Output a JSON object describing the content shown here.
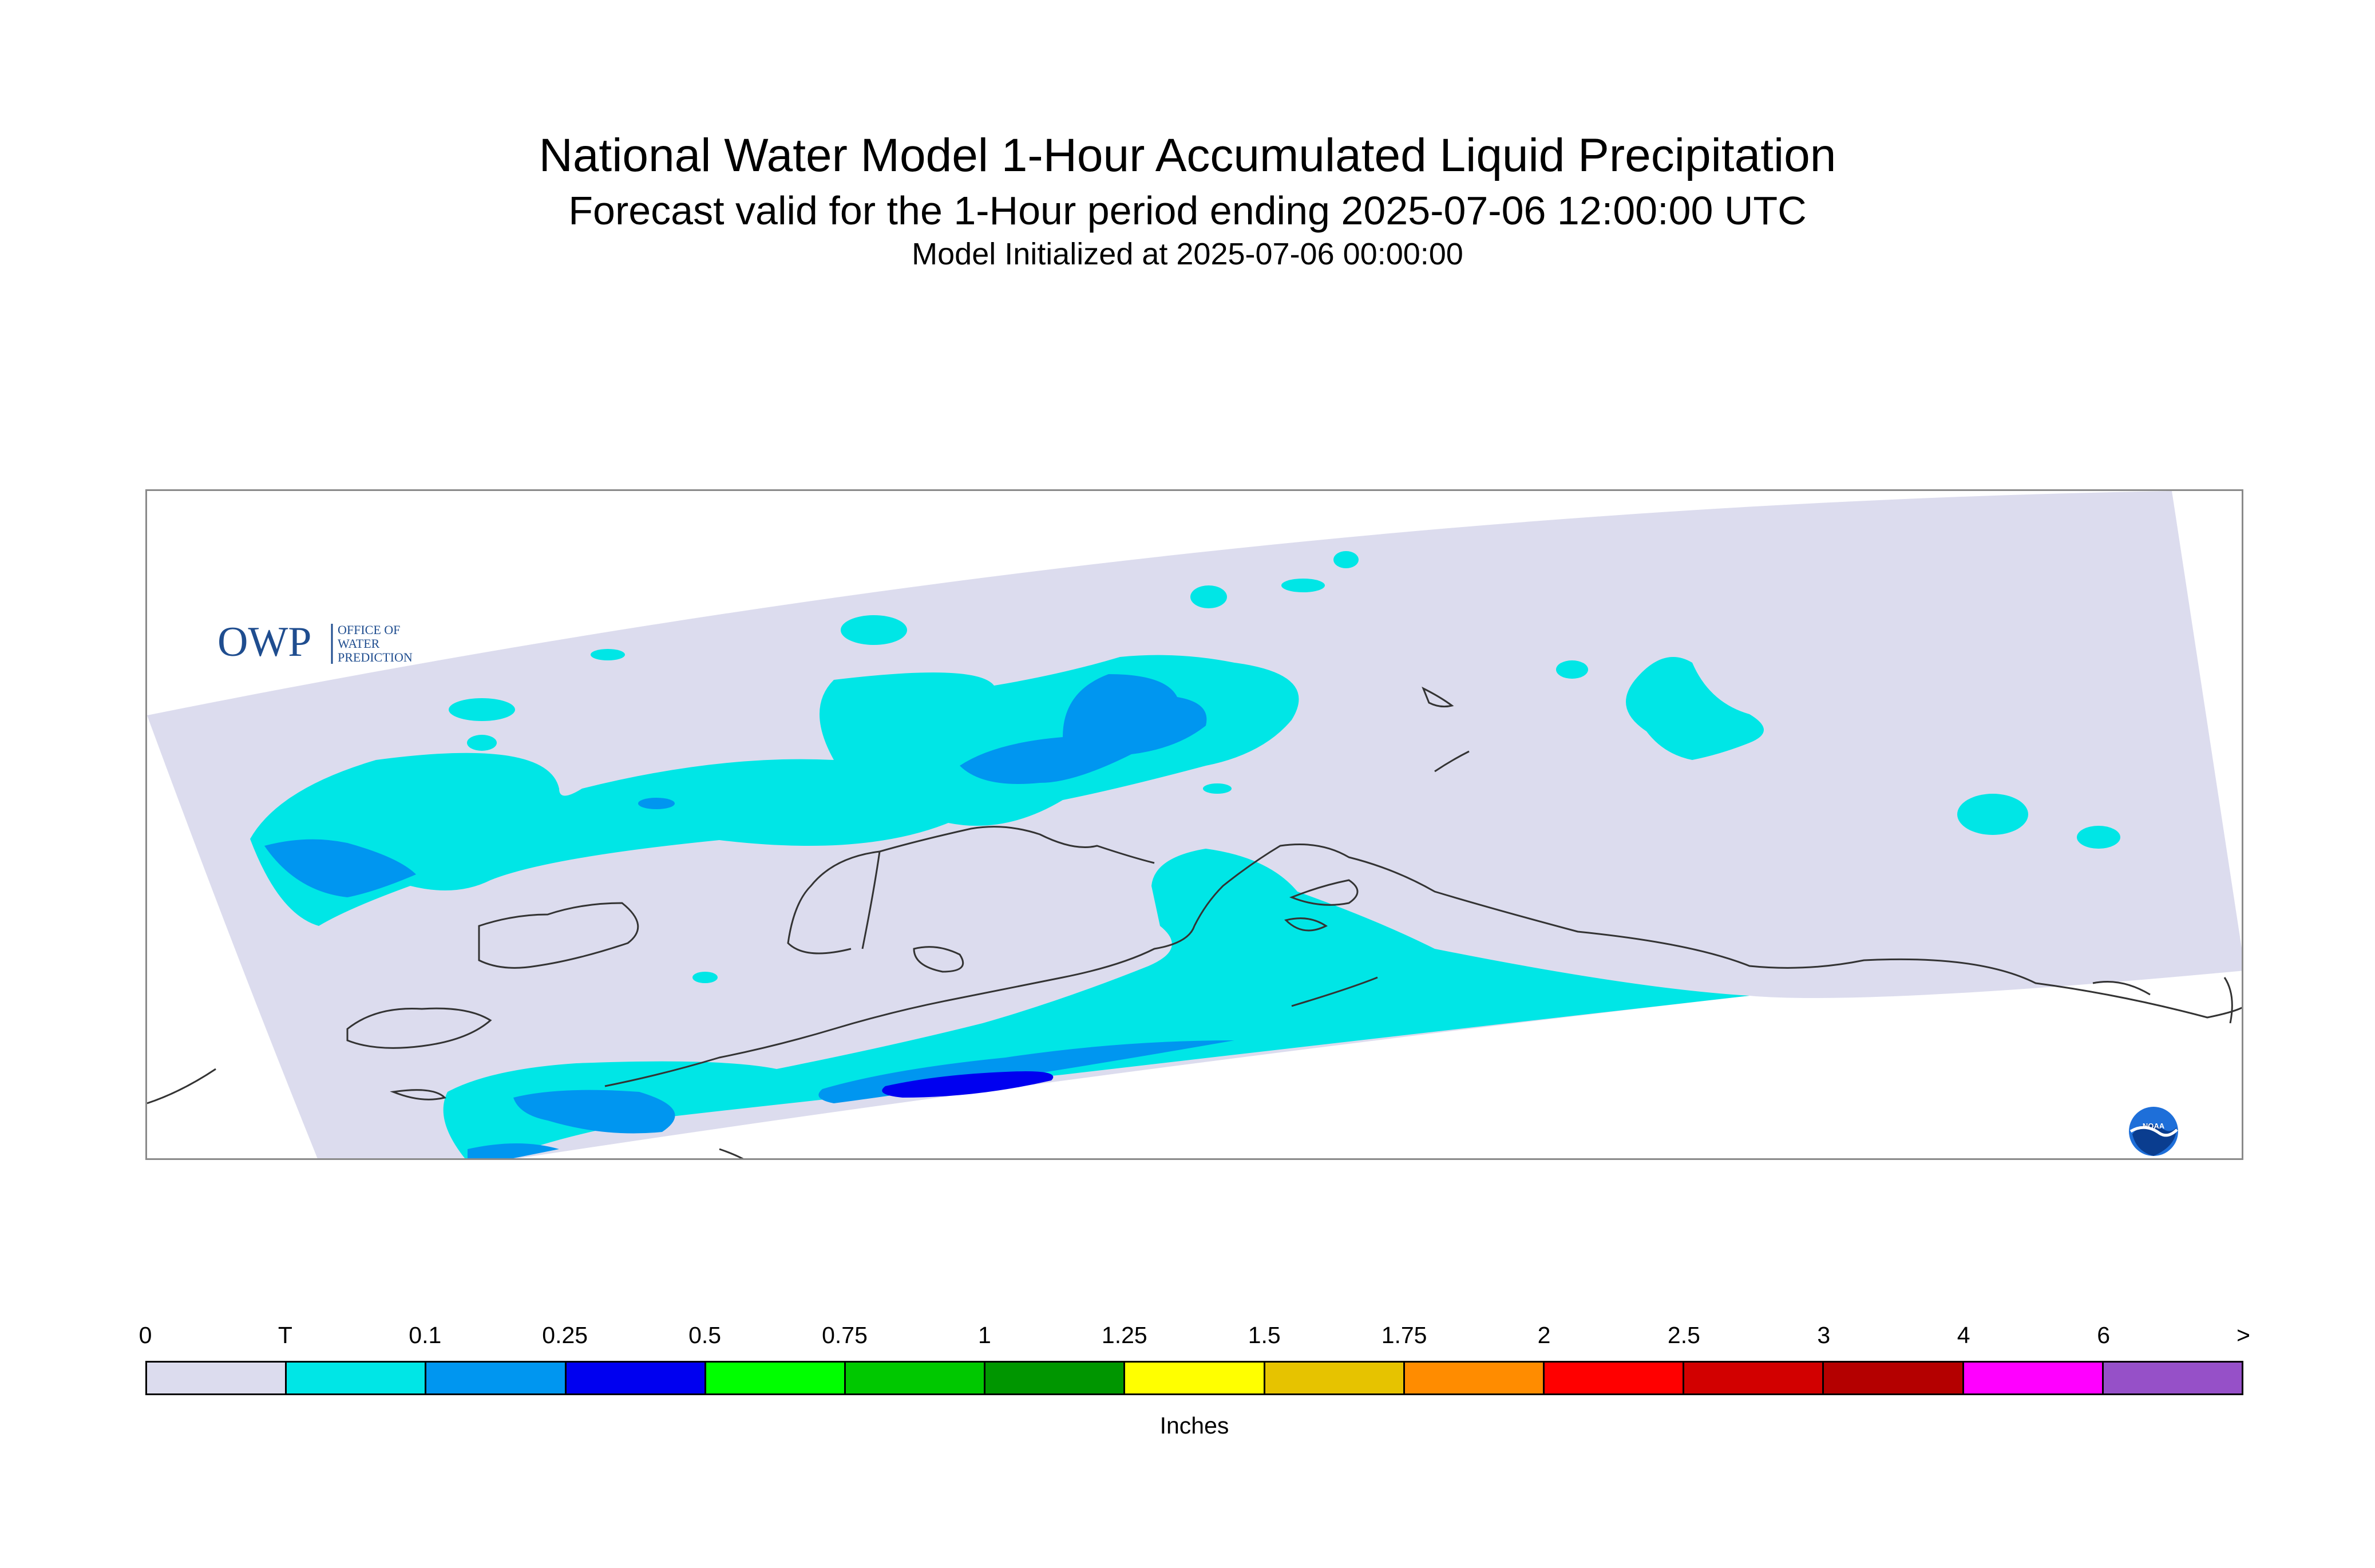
{
  "header": {
    "title": "National Water Model 1-Hour Accumulated Liquid Precipitation",
    "subtitle": "Forecast valid for the 1-Hour period ending 2025-07-06 12:00:00 UTC",
    "init_line": "Model Initialized at 2025-07-06 00:00:00"
  },
  "logos": {
    "owp_mark": "OWP",
    "owp_text": [
      "OFFICE OF",
      "WATER",
      "PREDICTION"
    ],
    "noaa_mark": "NOAA"
  },
  "legend": {
    "tick_labels": [
      "0",
      "T",
      "0.1",
      "0.25",
      "0.5",
      "0.75",
      "1",
      "1.25",
      "1.5",
      "1.75",
      "2",
      "2.5",
      "3",
      "4",
      "6",
      ">"
    ],
    "colors": [
      "#dcdcee",
      "#00e6e6",
      "#0096f0",
      "#0000f0",
      "#00ff00",
      "#00c800",
      "#009600",
      "#ffff00",
      "#e6c300",
      "#ff8c00",
      "#ff0000",
      "#d20000",
      "#b40000",
      "#ff00ff",
      "#9650c8"
    ],
    "units": "Inches"
  },
  "map": {
    "domain_color": "#dcdcee",
    "coast_color": "#333333"
  }
}
